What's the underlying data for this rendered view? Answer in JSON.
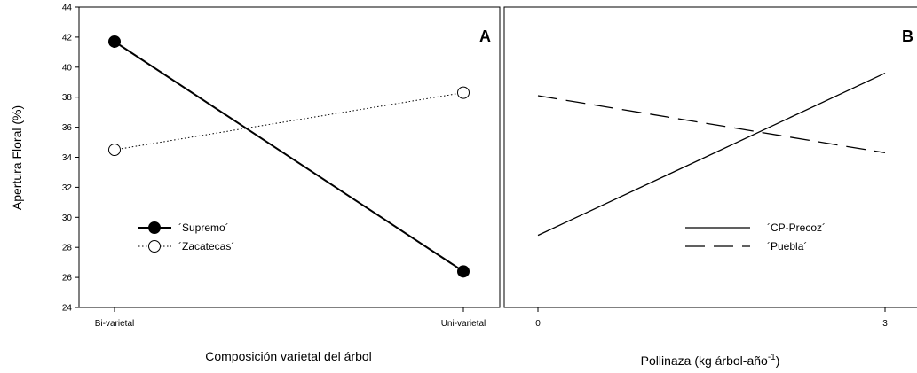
{
  "chart_data": [
    {
      "type": "line",
      "panel_label": "A",
      "ylabel": "Apertura Floral (%)",
      "xlabel": "Composición varietal del árbol",
      "categories": [
        "Bi-varietal",
        "Uni-varietal"
      ],
      "ylim": [
        24,
        44
      ],
      "yticks": [
        "24",
        "26",
        "28",
        "30",
        "32",
        "34",
        "36",
        "38",
        "40",
        "42",
        "44"
      ],
      "grid": false,
      "legend_position": "middle-left",
      "series": [
        {
          "name": "´Supremo´",
          "values": [
            41.7,
            26.4
          ],
          "marker": "filled-circle",
          "line": "solid"
        },
        {
          "name": "´Zacatecas´",
          "values": [
            34.5,
            38.3
          ],
          "marker": "open-circle",
          "line": "dotted"
        }
      ]
    },
    {
      "type": "line",
      "panel_label": "B",
      "xlabel_main": "Pollinaza (kg árbol-año",
      "xlabel_sup": "-1",
      "xlabel_close": ")",
      "x": [
        0,
        3
      ],
      "xticks": [
        "0",
        "3"
      ],
      "ylim": [
        24,
        44
      ],
      "grid": false,
      "legend_position": "bottom-right",
      "series": [
        {
          "name": "´CP-Precoz´",
          "values": [
            28.8,
            39.6
          ],
          "line": "solid"
        },
        {
          "name": "´Puebla´",
          "values": [
            38.1,
            34.3
          ],
          "line": "dashed"
        }
      ]
    }
  ]
}
